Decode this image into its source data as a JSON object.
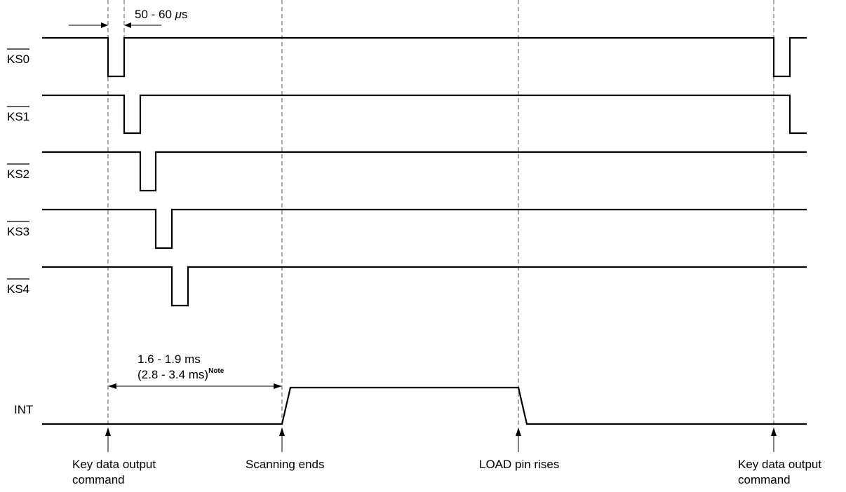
{
  "signals": [
    {
      "name": "KS0",
      "label": "KS0",
      "active_low": true
    },
    {
      "name": "KS1",
      "label": "KS1",
      "active_low": true
    },
    {
      "name": "KS2",
      "label": "KS2",
      "active_low": true
    },
    {
      "name": "KS3",
      "label": "KS3",
      "active_low": true
    },
    {
      "name": "KS4",
      "label": "KS4",
      "active_low": true
    },
    {
      "name": "INT",
      "label": "INT",
      "active_low": false
    }
  ],
  "pulse_width": {
    "label": "50 - 60 ",
    "unit_mu": "μ",
    "unit_s": "s"
  },
  "scan_time": {
    "line1": "1.6 - 1.9 ms",
    "line2": "(2.8 - 3.4 ms)",
    "note": "Note"
  },
  "events": {
    "key_data_cmd_1": {
      "line1": "Key data output",
      "line2": "command"
    },
    "scanning_ends": {
      "line1": "Scanning ends"
    },
    "load_rises": {
      "line1": "LOAD pin rises"
    },
    "key_data_cmd_2": {
      "line1": "Key data output",
      "line2": "command"
    }
  }
}
